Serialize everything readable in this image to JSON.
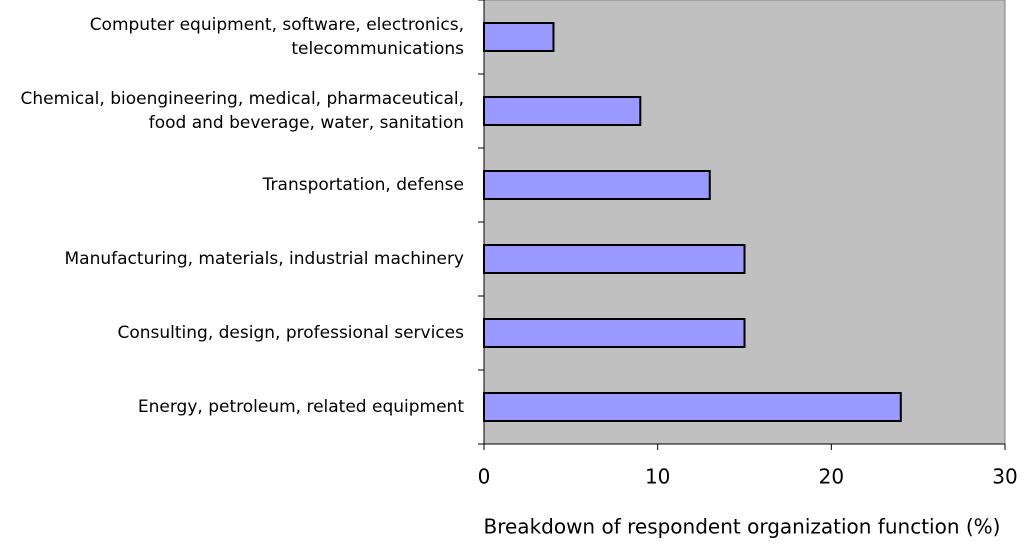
{
  "chart_data": {
    "type": "bar",
    "orientation": "horizontal",
    "x_label": "Breakdown of respondent organization function (%)",
    "categories": [
      "Computer equipment, software, electronics,\ntelecommunications",
      "Chemical, bioengineering, medical, pharmaceutical,\nfood and beverage, water, sanitation",
      "Transportation, defense",
      "Manufacturing, materials, industrial machinery",
      "Consulting, design, professional services",
      "Energy, petroleum, related equipment"
    ],
    "values": [
      4,
      9,
      13,
      15,
      15,
      24
    ],
    "color": "#9999ff",
    "xlim": [
      0,
      30
    ],
    "xticks": [
      0,
      10,
      20,
      30
    ],
    "grid": false
  }
}
